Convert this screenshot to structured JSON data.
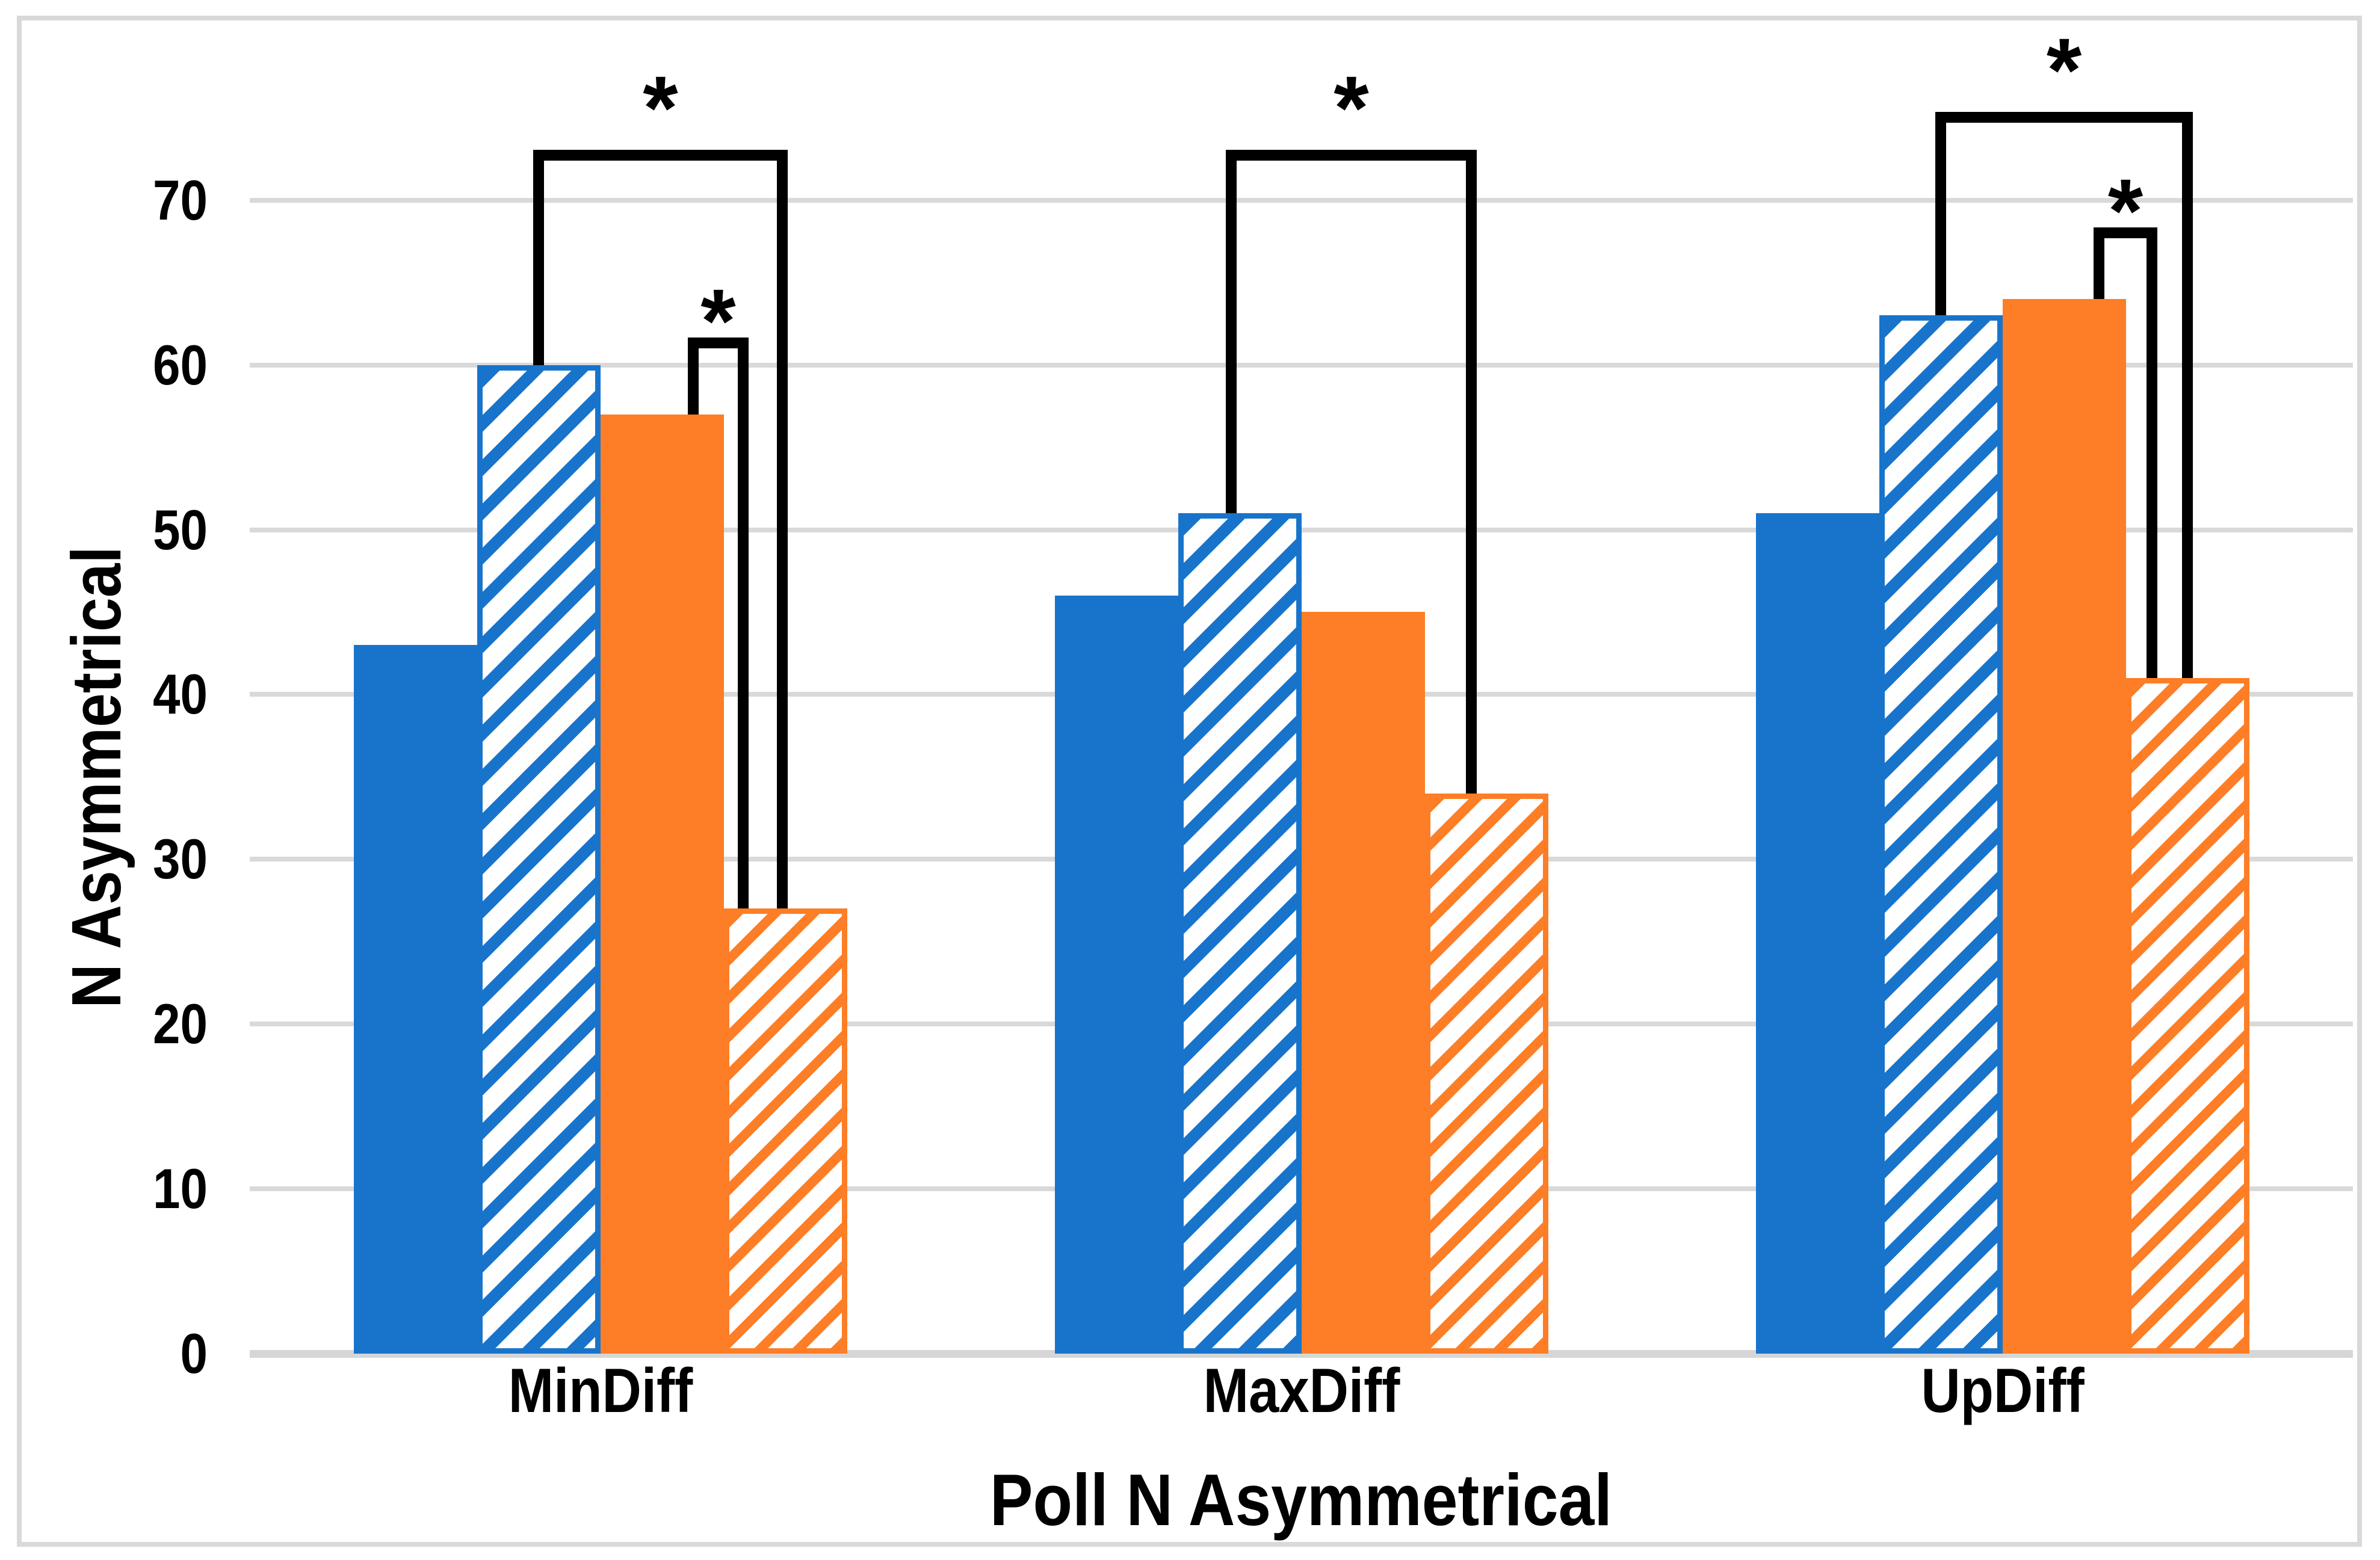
{
  "chart_data": {
    "type": "bar",
    "title": "",
    "xlabel": "Poll N Asymmetrical",
    "ylabel": "N Asymmetrical",
    "categories": [
      "MinDiff",
      "MaxDiff",
      "UpDiff"
    ],
    "series": [
      {
        "name": "blue-solid",
        "pattern": "solid",
        "color": "#1874CB",
        "values": [
          43,
          46,
          51
        ]
      },
      {
        "name": "blue-hatched",
        "pattern": "hatched",
        "color": "#1874CB",
        "values": [
          60,
          51,
          63
        ]
      },
      {
        "name": "orange-solid",
        "pattern": "solid",
        "color": "#FD7E26",
        "values": [
          57,
          45,
          64
        ]
      },
      {
        "name": "orange-hatched",
        "pattern": "hatched",
        "color": "#FD7E26",
        "values": [
          27,
          34,
          41
        ]
      }
    ],
    "yticks": [
      0,
      10,
      20,
      30,
      40,
      50,
      60,
      70
    ],
    "ylim": [
      0,
      78
    ],
    "grid": true,
    "legend_position": "none",
    "gridline_color": "#D9D9D9",
    "significance_brackets": [
      {
        "category_index": 0,
        "label": "*",
        "size": "large",
        "top": 72.4,
        "left": {
          "series": 1,
          "value": 60,
          "dx": 0
        },
        "right": {
          "series": 3,
          "value": 27,
          "dx": -5
        }
      },
      {
        "category_index": 0,
        "label": "*",
        "size": "small",
        "top": 61.0,
        "left": {
          "series": 2,
          "value": 57,
          "dx": 52
        },
        "right": {
          "series": 3,
          "value": 27,
          "dx": -70
        }
      },
      {
        "category_index": 1,
        "label": "*",
        "size": "large",
        "top": 72.4,
        "left": {
          "series": 1,
          "value": 51,
          "dx": -14
        },
        "right": {
          "series": 3,
          "value": 34,
          "dx": -25
        }
      },
      {
        "category_index": 2,
        "label": "*",
        "size": "large",
        "top": 74.7,
        "left": {
          "series": 1,
          "value": 63,
          "dx": 0
        },
        "right": {
          "series": 3,
          "value": 41,
          "dx": 0
        }
      },
      {
        "category_index": 2,
        "label": "*",
        "size": "small",
        "top": 67.7,
        "left": {
          "series": 2,
          "value": 64,
          "dx": 58
        },
        "right": {
          "series": 3,
          "value": 41,
          "dx": -59
        }
      }
    ]
  }
}
